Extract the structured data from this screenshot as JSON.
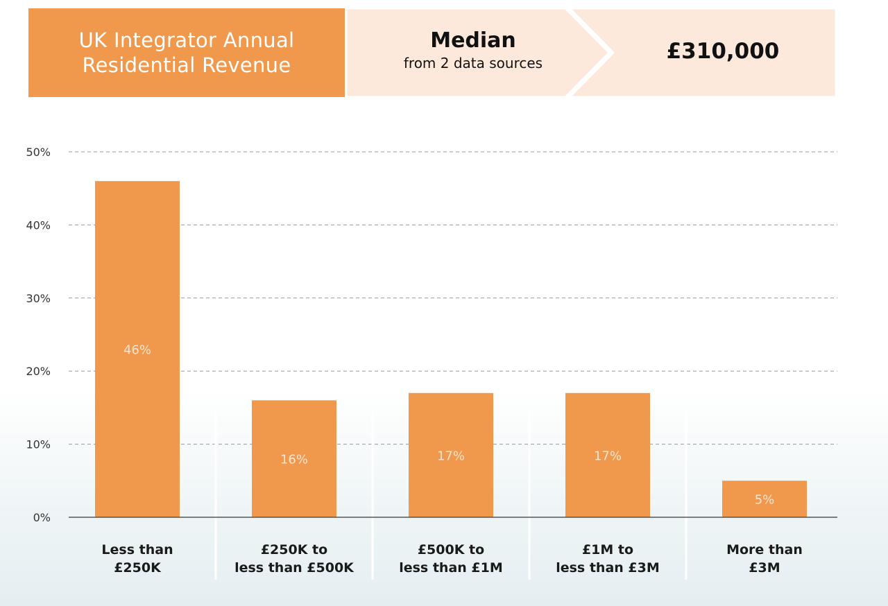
{
  "banner": {
    "title_line1": "UK Integrator Annual",
    "title_line2": "Residential Revenue",
    "median_title": "Median",
    "median_subtitle": "from 2 data sources",
    "median_value": "£310,000"
  },
  "colors": {
    "accent": "#f0984b",
    "banner_light": "#fde9dc",
    "grid": "#999999",
    "axis": "#555555"
  },
  "chart_data": {
    "type": "bar",
    "title": "UK Integrator Annual Residential Revenue",
    "categories": [
      [
        "Less than",
        "£250K"
      ],
      [
        "£250K to",
        "less than £500K"
      ],
      [
        "£500K to",
        "less than £1M"
      ],
      [
        "£1M to",
        "less than £3M"
      ],
      [
        "More than",
        "£3M"
      ]
    ],
    "values": [
      46,
      16,
      17,
      17,
      5
    ],
    "value_labels": [
      "46%",
      "16%",
      "17%",
      "17%",
      "5%"
    ],
    "ylim": [
      0,
      50
    ],
    "yticks": [
      0,
      10,
      20,
      30,
      40,
      50
    ],
    "ytick_labels": [
      "0%",
      "10%",
      "20%",
      "30%",
      "40%",
      "50%"
    ],
    "grid": true,
    "xlabel": "",
    "ylabel": ""
  }
}
